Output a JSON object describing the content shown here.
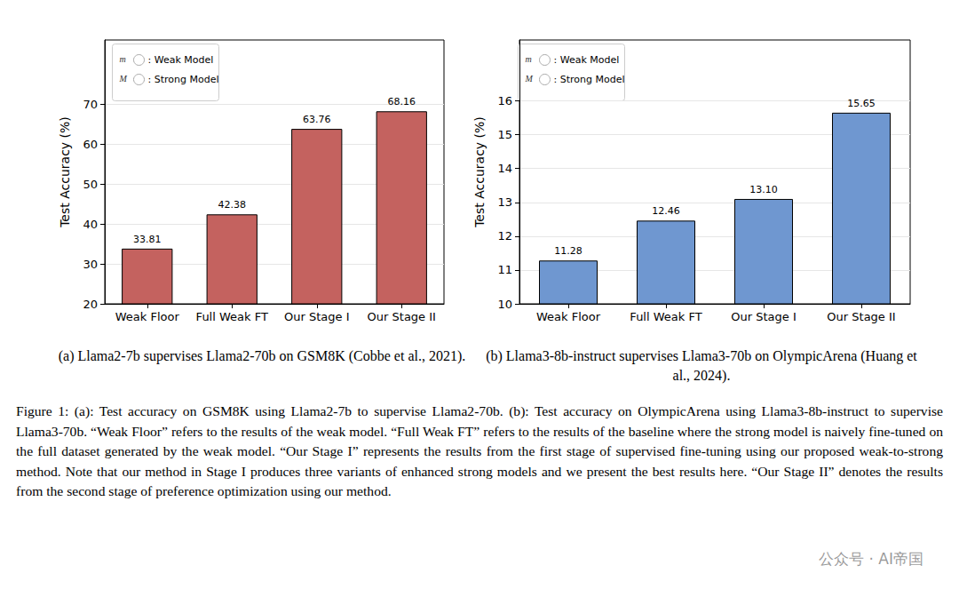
{
  "chart_data": [
    {
      "type": "bar",
      "title": "(a) Llama2-7b supervises Llama2-70b on GSM8K (Cobbe et al., 2021).",
      "y_label": "Test Accuracy (%)",
      "categories": [
        "Weak Floor",
        "Full Weak FT",
        "Our Stage I",
        "Our Stage II"
      ],
      "values": [
        33.81,
        42.38,
        63.76,
        68.16
      ],
      "color": "#c4625f",
      "ylim": [
        20,
        86
      ],
      "yticks": [
        20,
        30,
        40,
        50,
        60,
        70
      ],
      "grid": true,
      "data_labels": true,
      "annotations": [
        {
          "symbol": "m",
          "text": ": Weak Model"
        },
        {
          "symbol": "M",
          "text": ": Strong Model"
        }
      ]
    },
    {
      "type": "bar",
      "title": "(b) Llama3-8b-instruct supervises Llama3-70b on OlympicArena (Huang et al., 2024).",
      "y_label": "Test Accuracy (%)",
      "categories": [
        "Weak Floor",
        "Full Weak FT",
        "Our Stage I",
        "Our Stage II"
      ],
      "values": [
        11.28,
        12.46,
        13.1,
        15.65
      ],
      "value_labels": [
        "11.28",
        "12.46",
        "13.10",
        "15.65"
      ],
      "color": "#6f97d0",
      "ylim": [
        10,
        17.8
      ],
      "yticks": [
        10,
        11,
        12,
        13,
        14,
        15,
        16
      ],
      "grid": true,
      "data_labels": true,
      "annotations": [
        {
          "symbol": "m",
          "text": ": Weak Model"
        },
        {
          "symbol": "M",
          "text": ": Strong Model"
        }
      ]
    }
  ],
  "figure_caption": "Figure 1: (a): Test accuracy on GSM8K using Llama2-7b to supervise Llama2-70b. (b): Test accuracy on OlympicArena using Llama3-8b-instruct to supervise Llama3-70b. “Weak Floor” refers to the results of the weak model. “Full Weak FT” refers to the results of the baseline where the strong model is naively fine-tuned on the full dataset generated by the weak model. “Our Stage I” represents the results from the first stage of supervised fine-tuning using our proposed weak-to-strong method. Note that our method in Stage I produces three variants of enhanced strong models and we present the best results here. “Our Stage II” denotes the results from the second stage of preference optimization using our method.",
  "watermark": "公众号 · AI帝国"
}
